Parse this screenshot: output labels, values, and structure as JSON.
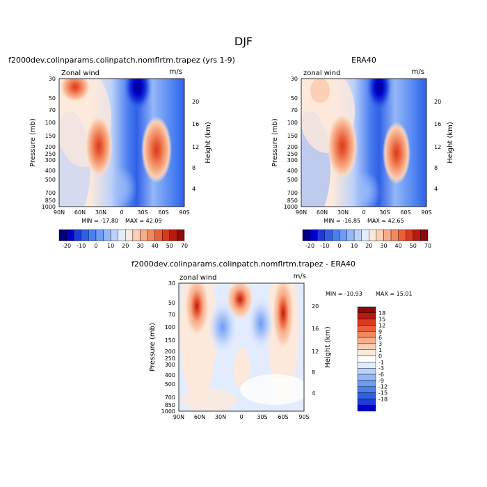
{
  "page_title": "DJF",
  "chart_data": [
    {
      "type": "heatmap",
      "title": "f2000dev.colinparams.colinpatch.nomflrtm.trapez (yrs 1-9)",
      "field_label": "Zonal wind",
      "units": "m/s",
      "xlabel": "",
      "ylabel": "Pressure (mb)",
      "y2label": "Height (km)",
      "x_ticks": [
        "90N",
        "60N",
        "30N",
        "0",
        "30S",
        "60S",
        "90S"
      ],
      "y_ticks": [
        "30",
        "50",
        "70",
        "100",
        "150",
        "200",
        "250",
        "300",
        "400",
        "500",
        "700",
        "850",
        "1000"
      ],
      "y2_ticks": [
        "20",
        "16",
        "12",
        "8",
        "4"
      ],
      "xlim": [
        90,
        -90
      ],
      "ylim": [
        1000,
        30
      ],
      "min_label": "MIN = -17.80",
      "max_label": "MAX = 42.09",
      "colorbar": {
        "orientation": "horizontal",
        "labels": [
          "-20",
          "-10",
          "0",
          "10",
          "20",
          "30",
          "40",
          "50",
          "70"
        ],
        "colors": [
          "#000080",
          "#0000cd",
          "#1c3bd8",
          "#2f5fe6",
          "#4a7ff0",
          "#6d9cf5",
          "#94b7f8",
          "#bcd1fa",
          "#e3ecfc",
          "#fde9dc",
          "#fbcfb4",
          "#f7ad8a",
          "#f18860",
          "#ea5f3a",
          "#d93a1e",
          "#b81a10",
          "#8b0a0a"
        ]
      },
      "features": [
        {
          "lat": 55,
          "p": 35,
          "value": 32
        },
        {
          "lat": 28,
          "p": 200,
          "value": 40
        },
        {
          "lat": -45,
          "p": 220,
          "value": 42
        },
        {
          "lat": -10,
          "p": 35,
          "value": -17
        },
        {
          "lat": 5,
          "p": 700,
          "value": -4
        }
      ]
    },
    {
      "type": "heatmap",
      "title": "ERA40",
      "field_label": "zonal wind",
      "units": "m/s",
      "xlabel": "",
      "ylabel": "Pressure (mb)",
      "y2label": "Height (km)",
      "x_ticks": [
        "90N",
        "60N",
        "30N",
        "0",
        "30S",
        "60S",
        "90S"
      ],
      "y_ticks": [
        "30",
        "50",
        "70",
        "100",
        "150",
        "200",
        "250",
        "300",
        "400",
        "500",
        "700",
        "850",
        "1000"
      ],
      "y2_ticks": [
        "20",
        "16",
        "12",
        "8",
        "4"
      ],
      "xlim": [
        90,
        -90
      ],
      "ylim": [
        1000,
        30
      ],
      "min_label": "MIN = -16.85",
      "max_label": "MAX = 42.65",
      "colorbar": {
        "orientation": "horizontal",
        "labels": [
          "-20",
          "-10",
          "0",
          "10",
          "20",
          "30",
          "40",
          "50",
          "70"
        ],
        "colors": [
          "#000080",
          "#0000cd",
          "#1c3bd8",
          "#2f5fe6",
          "#4a7ff0",
          "#6d9cf5",
          "#94b7f8",
          "#bcd1fa",
          "#e3ecfc",
          "#fde9dc",
          "#fbcfb4",
          "#f7ad8a",
          "#f18860",
          "#ea5f3a",
          "#d93a1e",
          "#b81a10",
          "#8b0a0a"
        ]
      },
      "features": [
        {
          "lat": 30,
          "p": 210,
          "value": 40
        },
        {
          "lat": -47,
          "p": 220,
          "value": 42
        },
        {
          "lat": -10,
          "p": 35,
          "value": -16
        },
        {
          "lat": 60,
          "p": 40,
          "value": 15
        }
      ]
    },
    {
      "type": "heatmap",
      "title": "f2000dev.colinparams.colinpatch.nomflrtm.trapez - ERA40",
      "field_label": "zonal wind",
      "units": "m/s",
      "xlabel": "",
      "ylabel": "Pressure (mb)",
      "y2label": "Height (km)",
      "x_ticks": [
        "90N",
        "60N",
        "30N",
        "0",
        "30S",
        "60S",
        "90S"
      ],
      "y_ticks": [
        "30",
        "50",
        "70",
        "100",
        "150",
        "200",
        "250",
        "300",
        "400",
        "500",
        "700",
        "850",
        "1000"
      ],
      "y2_ticks": [
        "20",
        "16",
        "12",
        "8",
        "4"
      ],
      "xlim": [
        90,
        -90
      ],
      "ylim": [
        1000,
        30
      ],
      "min_label": "MIN = -10.93",
      "max_label": "MAX =  15.01",
      "colorbar": {
        "orientation": "vertical",
        "labels": [
          "18",
          "15",
          "12",
          "9",
          "6",
          "3",
          "1",
          "0",
          "-1",
          "-3",
          "-6",
          "-9",
          "-12",
          "-15",
          "-18"
        ],
        "colors": [
          "#8b0a0a",
          "#b81a10",
          "#d93a1e",
          "#ea5f3a",
          "#f18860",
          "#f7ad8a",
          "#fbcfb4",
          "#fde9dc",
          "#ffffff",
          "#e3ecfc",
          "#bcd1fa",
          "#94b7f8",
          "#6d9cf5",
          "#4a7ff0",
          "#2f5fe6",
          "#1c3bd8",
          "#0000cd"
        ]
      },
      "features": [
        {
          "lat": 62,
          "p": 35,
          "value": 15
        },
        {
          "lat": -55,
          "p": 60,
          "value": 9
        },
        {
          "lat": 5,
          "p": 50,
          "value": 6
        },
        {
          "lat": 10,
          "p": 300,
          "value": 3
        },
        {
          "lat": 28,
          "p": 150,
          "value": -3
        }
      ]
    }
  ]
}
